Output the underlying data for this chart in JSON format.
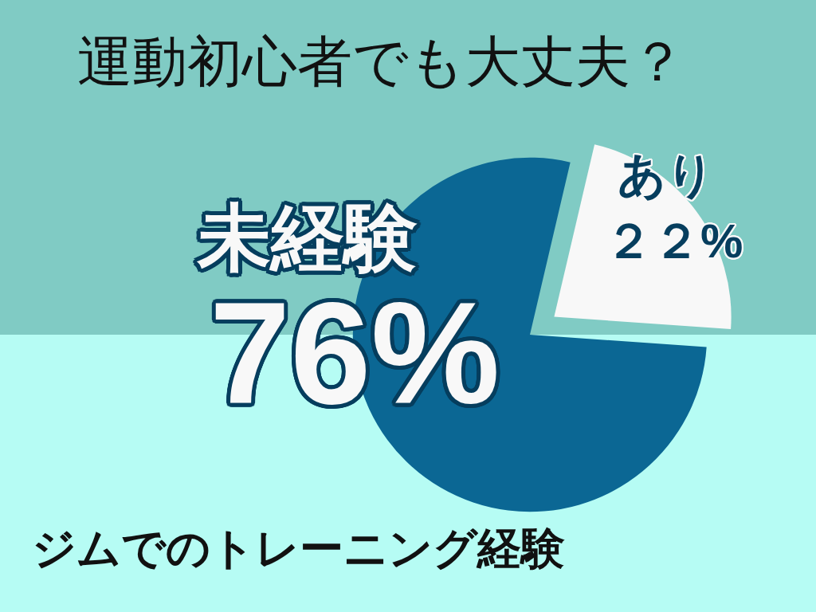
{
  "chart_data": {
    "type": "pie",
    "title": "運動初心者でも大丈夫？",
    "categories": [
      "未経験",
      "あり"
    ],
    "values": [
      76,
      22
    ],
    "colors": [
      "#0b6794",
      "#f8f8f8"
    ],
    "value_labels": [
      "76%",
      "２２%"
    ],
    "annotations": [
      "ジムでのトレーニング経験"
    ]
  }
}
